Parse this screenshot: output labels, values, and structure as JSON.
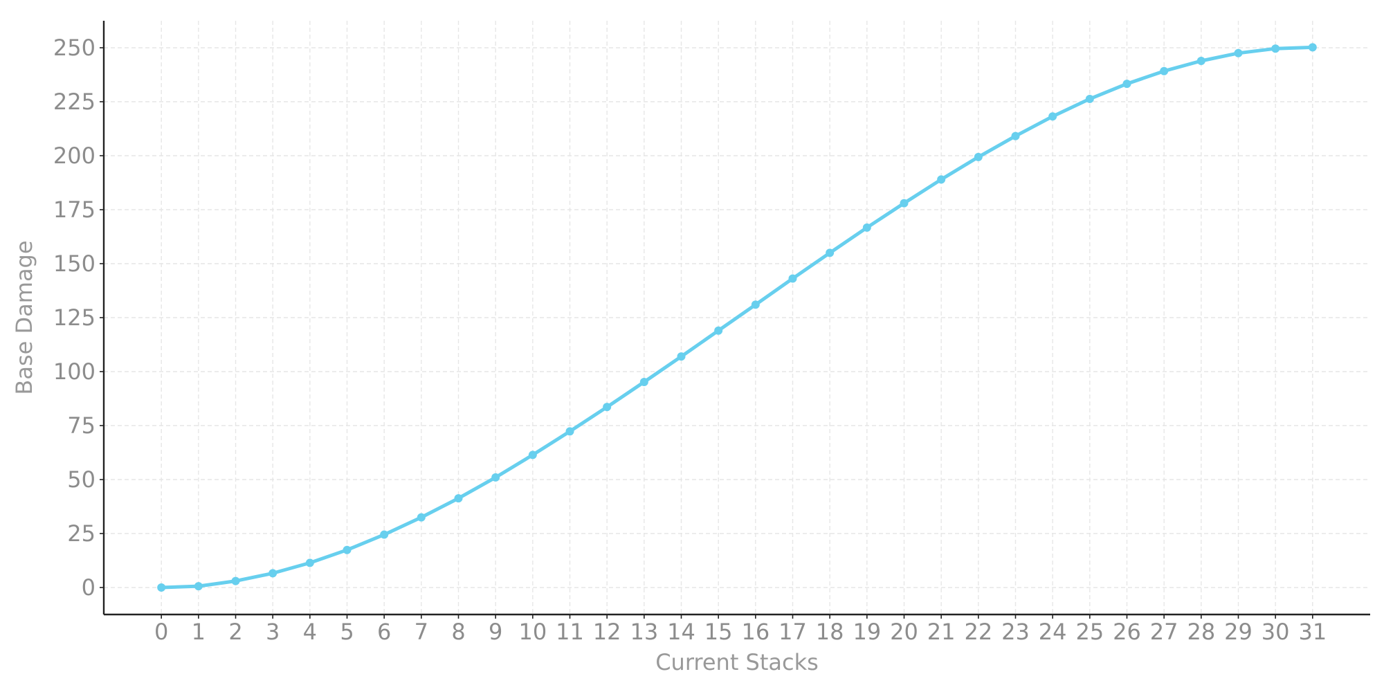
{
  "chart_data": {
    "type": "line",
    "title": "",
    "xlabel": "Current Stacks",
    "ylabel": "Base Damage",
    "x": [
      0,
      1,
      2,
      3,
      4,
      5,
      6,
      7,
      8,
      9,
      10,
      11,
      12,
      13,
      14,
      15,
      16,
      17,
      18,
      19,
      20,
      21,
      22,
      23,
      24,
      25,
      26,
      27,
      28,
      29,
      30,
      31
    ],
    "xticks": [
      "0",
      "1",
      "2",
      "3",
      "4",
      "5",
      "6",
      "7",
      "8",
      "9",
      "10",
      "11",
      "12",
      "13",
      "14",
      "15",
      "16",
      "17",
      "18",
      "19",
      "20",
      "21",
      "22",
      "23",
      "24",
      "25",
      "26",
      "27",
      "28",
      "29",
      "30",
      "31"
    ],
    "series": [
      {
        "color": "#67cfee",
        "values": [
          0,
          0.6,
          3.0,
          6.6,
          11.4,
          17.4,
          24.5,
          32.5,
          41.3,
          51.0,
          61.4,
          72.3,
          83.6,
          95.2,
          107.0,
          119.0,
          131.0,
          143.1,
          155.0,
          166.7,
          178.0,
          189.0,
          199.4,
          209.1,
          218.2,
          226.3,
          233.3,
          239.2,
          243.9,
          247.5,
          249.6,
          250.2
        ]
      }
    ],
    "xlim": [
      -1.55,
      32.55
    ],
    "ylim": [
      -12.5,
      262.5
    ],
    "yticks": [
      0,
      25,
      50,
      75,
      100,
      125,
      150,
      175,
      200,
      225,
      250
    ],
    "grid": true,
    "legend": "none"
  }
}
